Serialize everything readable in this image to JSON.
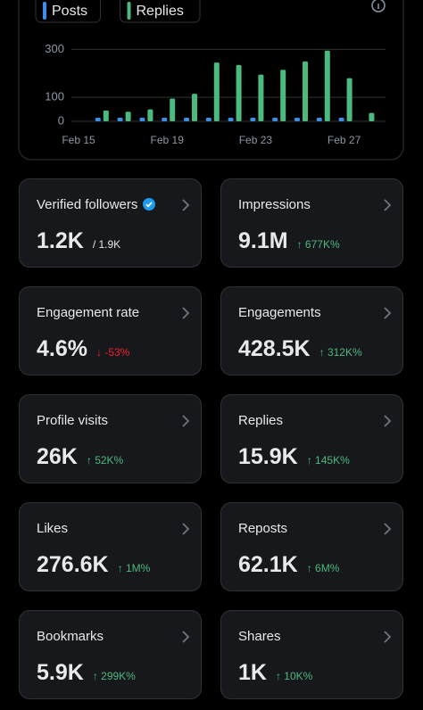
{
  "chart_data": {
    "type": "bar",
    "categories": [
      "Feb 15",
      null,
      null,
      null,
      "Feb 19",
      null,
      null,
      null,
      "Feb 23",
      null,
      null,
      null,
      "Feb 27",
      null
    ],
    "series": [
      {
        "name": "Posts",
        "color": "#3b8fe8",
        "values": [
          0,
          15,
          15,
          15,
          15,
          15,
          15,
          15,
          15,
          15,
          15,
          15,
          15,
          0
        ]
      },
      {
        "name": "Replies",
        "color": "#4cb97e",
        "values": [
          0,
          45,
          40,
          50,
          95,
          115,
          245,
          235,
          195,
          215,
          250,
          295,
          180,
          35
        ]
      }
    ],
    "ylim": [
      0,
      320
    ],
    "yticks": [
      0,
      100,
      300
    ],
    "grid": true
  },
  "cards": [
    {
      "label": "Verified followers",
      "value": "1.2K",
      "sub": "/ 1.9K",
      "trend": "none",
      "verified": true
    },
    {
      "label": "Impressions",
      "value": "9.1M",
      "sub": "↑ 677K%",
      "trend": "up"
    },
    {
      "label": "Engagement rate",
      "value": "4.6%",
      "sub": "↓ -53%",
      "trend": "down"
    },
    {
      "label": "Engagements",
      "value": "428.5K",
      "sub": "↑ 312K%",
      "trend": "up"
    },
    {
      "label": "Profile visits",
      "value": "26K",
      "sub": "↑ 52K%",
      "trend": "up"
    },
    {
      "label": "Replies",
      "value": "15.9K",
      "sub": "↑ 145K%",
      "trend": "up"
    },
    {
      "label": "Likes",
      "value": "276.6K",
      "sub": "↑ 1M%",
      "trend": "up"
    },
    {
      "label": "Reposts",
      "value": "62.1K",
      "sub": "↑ 6M%",
      "trend": "up"
    },
    {
      "label": "Bookmarks",
      "value": "5.9K",
      "sub": "↑ 299K%",
      "trend": "up"
    },
    {
      "label": "Shares",
      "value": "1K",
      "sub": "↑ 10K%",
      "trend": "up"
    }
  ]
}
